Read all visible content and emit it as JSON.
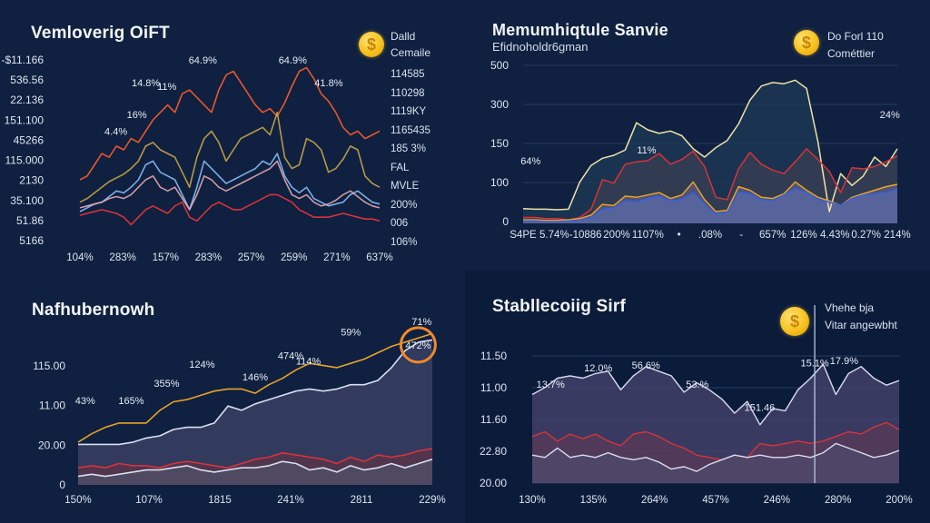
{
  "colors": {
    "background": "#0e1f3d",
    "orange": "#e8572a",
    "gold": "#c9a646",
    "light_blue": "#7fb6f0",
    "pink": "#e6a7b0",
    "red": "#d8333a",
    "cream": "#efe3a8",
    "blue": "#3a5fd9",
    "amber": "#e9a229",
    "white_line": "#d9def0",
    "area_slate": "#4a4f74",
    "area_purple": "#4b4470"
  },
  "panels": [
    {
      "title": "Vemloverig OiFT",
      "coin_icon": "coin-icon",
      "legend": [
        "Dalld",
        "Cemaile"
      ],
      "right_labels": [
        "114585",
        "110298",
        "1119KY",
        "1165435",
        "185 3%",
        "FAL",
        "MVLE",
        "200%",
        "006",
        "106%"
      ]
    },
    {
      "title": "Memumhiqtule Sanvie",
      "subtitle": "Efidnoholdr6gman",
      "coin_icon": "coin-icon",
      "legend": [
        "Do Forl 110",
        "Cométtier"
      ]
    },
    {
      "title": "Nafhubernowh"
    },
    {
      "title": "Stabllecoiig Sirf",
      "coin_icon": "coin-icon",
      "legend": [
        "Vhehe bja",
        "Vitar angewbht"
      ]
    }
  ],
  "chart_data": [
    {
      "type": "line",
      "title": "Vemloverig OiFT",
      "y_tick_labels": [
        "-$11.166",
        "536.56",
        "22.136",
        "151.100",
        "45266",
        "115.000",
        "2130",
        "35.100",
        "51.86",
        "5166"
      ],
      "x_tick_labels": [
        "104%",
        "283%",
        "157%",
        "283%",
        "257%",
        "259%",
        "271%",
        "637%"
      ],
      "ylim": [
        0,
        100
      ],
      "annotations": [
        {
          "text": "64.9%",
          "x": 0.41,
          "y": 96
        },
        {
          "text": "64.9%",
          "x": 0.71,
          "y": 96
        },
        {
          "text": "14.8%",
          "x": 0.22,
          "y": 84
        },
        {
          "text": "11%",
          "x": 0.29,
          "y": 82
        },
        {
          "text": "41.8%",
          "x": 0.83,
          "y": 84
        },
        {
          "text": "16%",
          "x": 0.19,
          "y": 67
        },
        {
          "text": "4.4%",
          "x": 0.12,
          "y": 58
        }
      ],
      "series": [
        {
          "name": "orange",
          "color_key": "orange",
          "values": [
            34,
            36,
            42,
            48,
            46,
            52,
            50,
            56,
            54,
            60,
            66,
            70,
            74,
            70,
            80,
            82,
            78,
            74,
            70,
            82,
            90,
            92,
            86,
            80,
            74,
            70,
            72,
            68,
            75,
            84,
            92,
            94,
            88,
            80,
            76,
            70,
            62,
            58,
            60,
            56,
            58,
            60
          ]
        },
        {
          "name": "gold",
          "color_key": "gold",
          "values": [
            22,
            24,
            27,
            30,
            33,
            35,
            37,
            40,
            44,
            52,
            54,
            50,
            48,
            46,
            38,
            30,
            46,
            56,
            60,
            54,
            44,
            50,
            56,
            58,
            60,
            62,
            58,
            70,
            46,
            40,
            42,
            56,
            54,
            50,
            38,
            40,
            45,
            52,
            50,
            36,
            32,
            30
          ]
        },
        {
          "name": "light_blue",
          "color_key": "light_blue",
          "values": [
            17,
            19,
            21,
            22,
            25,
            28,
            27,
            30,
            34,
            42,
            44,
            38,
            36,
            34,
            26,
            18,
            30,
            44,
            40,
            36,
            32,
            34,
            36,
            38,
            40,
            44,
            42,
            48,
            36,
            30,
            27,
            30,
            24,
            22,
            20,
            21,
            22,
            26,
            28,
            25,
            22,
            21
          ]
        },
        {
          "name": "pink",
          "color_key": "pink",
          "values": [
            19,
            20,
            21,
            22,
            24,
            25,
            24,
            26,
            30,
            34,
            36,
            30,
            28,
            30,
            24,
            18,
            26,
            36,
            34,
            30,
            28,
            30,
            32,
            34,
            36,
            38,
            40,
            44,
            34,
            26,
            24,
            26,
            22,
            20,
            21,
            23,
            26,
            28,
            25,
            22,
            20,
            19
          ]
        },
        {
          "name": "red",
          "color_key": "red",
          "values": [
            15,
            16,
            17,
            18,
            17,
            16,
            14,
            10,
            14,
            18,
            20,
            18,
            16,
            20,
            22,
            14,
            12,
            16,
            20,
            22,
            20,
            18,
            18,
            20,
            22,
            24,
            26,
            26,
            24,
            22,
            18,
            16,
            14,
            14,
            14,
            15,
            16,
            15,
            14,
            13,
            13,
            12
          ]
        }
      ]
    },
    {
      "type": "area",
      "title": "Memumhiqtule Sanvie",
      "y_tick_labels": [
        "500",
        "300",
        "150",
        "100",
        "0"
      ],
      "x_tick_labels": [
        "S4PE",
        "5.74%",
        "-10886",
        "200%",
        "1107%",
        "•",
        ".08%",
        "-",
        "657%",
        "126%",
        "4.43%",
        "0.27%",
        "214%"
      ],
      "ylim": [
        0,
        270
      ],
      "annotations": [
        {
          "text": "11%",
          "x": 0.33,
          "y": 118
        },
        {
          "text": "64%",
          "x": 0.02,
          "y": 100
        },
        {
          "text": "24%",
          "x": 0.98,
          "y": 178
        }
      ],
      "series": [
        {
          "name": "cream",
          "color_key": "cream",
          "values": [
            25,
            24,
            24,
            23,
            24,
            70,
            98,
            110,
            115,
            124,
            170,
            158,
            152,
            156,
            148,
            126,
            112,
            128,
            140,
            168,
            208,
            232,
            238,
            236,
            242,
            228,
            138,
            20,
            84,
            64,
            80,
            112,
            96,
            126
          ]
        },
        {
          "name": "red",
          "color_key": "red",
          "values": [
            10,
            10,
            8,
            8,
            6,
            10,
            24,
            74,
            68,
            100,
            104,
            106,
            118,
            100,
            108,
            122,
            96,
            44,
            40,
            92,
            120,
            100,
            90,
            84,
            104,
            126,
            108,
            88,
            52,
            94,
            92,
            96,
            104,
            114
          ]
        },
        {
          "name": "amber",
          "color_key": "amber",
          "values": [
            6,
            6,
            5,
            5,
            6,
            8,
            14,
            32,
            30,
            46,
            44,
            48,
            52,
            42,
            48,
            70,
            40,
            20,
            22,
            62,
            56,
            44,
            42,
            50,
            70,
            56,
            44,
            38,
            30,
            44,
            50,
            56,
            62,
            66
          ]
        },
        {
          "name": "blue",
          "color_key": "blue",
          "values": [
            4,
            4,
            3,
            3,
            4,
            6,
            10,
            24,
            26,
            38,
            36,
            42,
            46,
            38,
            40,
            52,
            32,
            16,
            18,
            52,
            50,
            40,
            38,
            48,
            58,
            52,
            40,
            36,
            30,
            42,
            48,
            50,
            52,
            58
          ]
        }
      ]
    },
    {
      "type": "area",
      "title": "Nafhubernowh",
      "y_tick_labels": [
        "115.00",
        "11.00",
        "20.00",
        "0"
      ],
      "x_tick_labels": [
        "150%",
        "107%",
        "1815",
        "241%",
        "2811",
        "229%"
      ],
      "ylim": [
        0,
        150
      ],
      "annotations": [
        {
          "text": "71%",
          "x": 0.97,
          "y": 150
        },
        {
          "text": "59%",
          "x": 0.77,
          "y": 140
        },
        {
          "text": "472%",
          "x": 0.96,
          "y": 128,
          "highlight": true
        },
        {
          "text": "474%",
          "x": 0.6,
          "y": 118
        },
        {
          "text": "114%",
          "x": 0.65,
          "y": 113
        },
        {
          "text": "124%",
          "x": 0.35,
          "y": 110
        },
        {
          "text": "146%",
          "x": 0.5,
          "y": 98
        },
        {
          "text": "355%",
          "x": 0.25,
          "y": 92
        },
        {
          "text": "43%",
          "x": 0.02,
          "y": 76
        },
        {
          "text": "165%",
          "x": 0.15,
          "y": 76
        }
      ],
      "series": [
        {
          "name": "amber",
          "color_key": "amber",
          "values": [
            40,
            48,
            54,
            58,
            58,
            58,
            70,
            78,
            80,
            84,
            88,
            90,
            90,
            86,
            94,
            100,
            108,
            114,
            112,
            110,
            114,
            118,
            124,
            130,
            134,
            138,
            142
          ]
        },
        {
          "name": "white",
          "color_key": "white_line",
          "values": [
            38,
            38,
            38,
            38,
            40,
            44,
            46,
            52,
            54,
            54,
            58,
            74,
            70,
            76,
            80,
            84,
            88,
            90,
            88,
            90,
            94,
            94,
            98,
            110,
            126,
            134,
            136
          ]
        },
        {
          "name": "red",
          "color_key": "red",
          "values": [
            16,
            18,
            16,
            20,
            18,
            18,
            16,
            20,
            22,
            20,
            18,
            16,
            20,
            24,
            26,
            30,
            28,
            26,
            24,
            20,
            26,
            22,
            28,
            26,
            28,
            32,
            34
          ]
        },
        {
          "name": "white2",
          "color_key": "white_line",
          "values": [
            8,
            10,
            8,
            10,
            12,
            14,
            14,
            16,
            18,
            14,
            12,
            14,
            16,
            16,
            18,
            22,
            20,
            14,
            16,
            12,
            18,
            14,
            16,
            20,
            16,
            20,
            24
          ]
        }
      ]
    },
    {
      "type": "area",
      "title": "Stabllecoiig Sirf",
      "y_tick_labels": [
        "11.50",
        "11.00",
        "11.60",
        "22.80",
        "20.00"
      ],
      "x_tick_labels": [
        "130%",
        "135%",
        "264%",
        "457%",
        "246%",
        "280%",
        "200%"
      ],
      "ylim": [
        0,
        120
      ],
      "annotations": [
        {
          "text": "12.0%",
          "x": 0.18,
          "y": 96
        },
        {
          "text": "56.6%",
          "x": 0.31,
          "y": 98
        },
        {
          "text": "53.%",
          "x": 0.45,
          "y": 82
        },
        {
          "text": "15.1%",
          "x": 0.77,
          "y": 100
        },
        {
          "text": "17.9%",
          "x": 0.85,
          "y": 102
        },
        {
          "text": "151.46",
          "x": 0.62,
          "y": 62
        },
        {
          "text": "13.7%",
          "x": 0.05,
          "y": 82
        }
      ],
      "vertical_marker_x": 0.77,
      "series": [
        {
          "name": "white",
          "color_key": "white_line",
          "values": [
            76,
            82,
            90,
            92,
            90,
            94,
            96,
            80,
            92,
            100,
            96,
            92,
            78,
            86,
            80,
            72,
            60,
            70,
            50,
            64,
            62,
            80,
            90,
            102,
            76,
            94,
            100,
            90,
            84,
            88
          ]
        },
        {
          "name": "red",
          "color_key": "red",
          "values": [
            40,
            44,
            36,
            42,
            38,
            42,
            36,
            32,
            42,
            44,
            40,
            34,
            30,
            24,
            22,
            20,
            24,
            22,
            34,
            32,
            34,
            36,
            34,
            36,
            40,
            44,
            42,
            48,
            52,
            46
          ]
        },
        {
          "name": "white2",
          "color_key": "white_line",
          "values": [
            24,
            22,
            30,
            22,
            24,
            22,
            26,
            22,
            20,
            22,
            18,
            12,
            14,
            10,
            16,
            20,
            24,
            22,
            24,
            22,
            22,
            24,
            22,
            26,
            34,
            30,
            26,
            22,
            24,
            28
          ]
        }
      ]
    }
  ]
}
